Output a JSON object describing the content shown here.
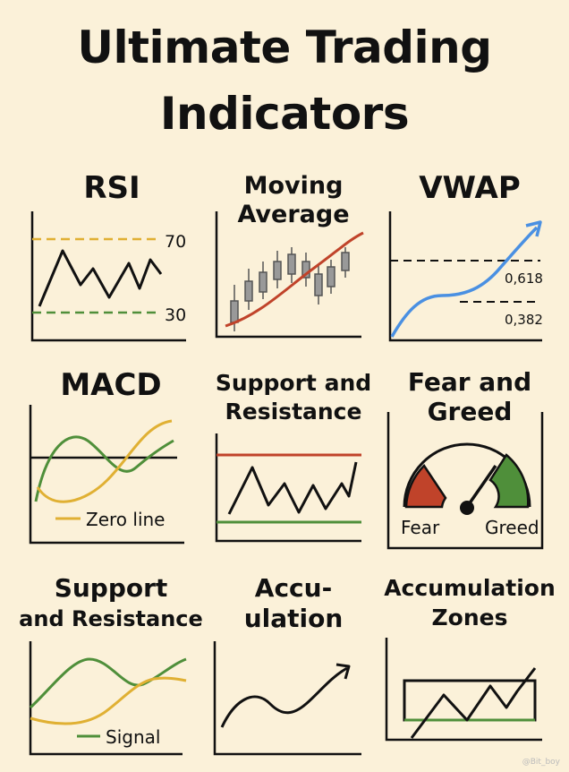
{
  "title": {
    "line1": "Ultimate Trading",
    "line2": "Indicators"
  },
  "panels": {
    "rsi": {
      "title": "RSI",
      "upper_level": "70",
      "lower_level": "30"
    },
    "moving_average": {
      "title_line1": "Moving",
      "title_line2": "Average"
    },
    "vwap": {
      "title": "VWAP",
      "fib_upper": "0,618",
      "fib_lower": "0,382"
    },
    "macd": {
      "title": "MACD",
      "legend": "Zero line"
    },
    "support_resistance_1": {
      "title_line1": "Support and",
      "title_line2": "Resistance"
    },
    "fear_greed": {
      "title_line1": "Fear and",
      "title_line2": "Greed",
      "fear_label": "Fear",
      "greed_label": "Greed"
    },
    "support_resistance_2": {
      "title_line1": "Support",
      "title_line2": "and Resistance",
      "legend": "Signal"
    },
    "accumulation": {
      "title_line1": "Accu-",
      "title_line2": "ulation"
    },
    "accumulation_zones": {
      "title_line1": "Accumulation",
      "title_line2": "Zones"
    }
  },
  "watermark": "@Bit_boy",
  "colors": {
    "background": "#fbf1d9",
    "ink": "#111111",
    "gold": "#e0b033",
    "green": "#4f8f3a",
    "red": "#c0432a",
    "blue": "#4a90e2"
  }
}
